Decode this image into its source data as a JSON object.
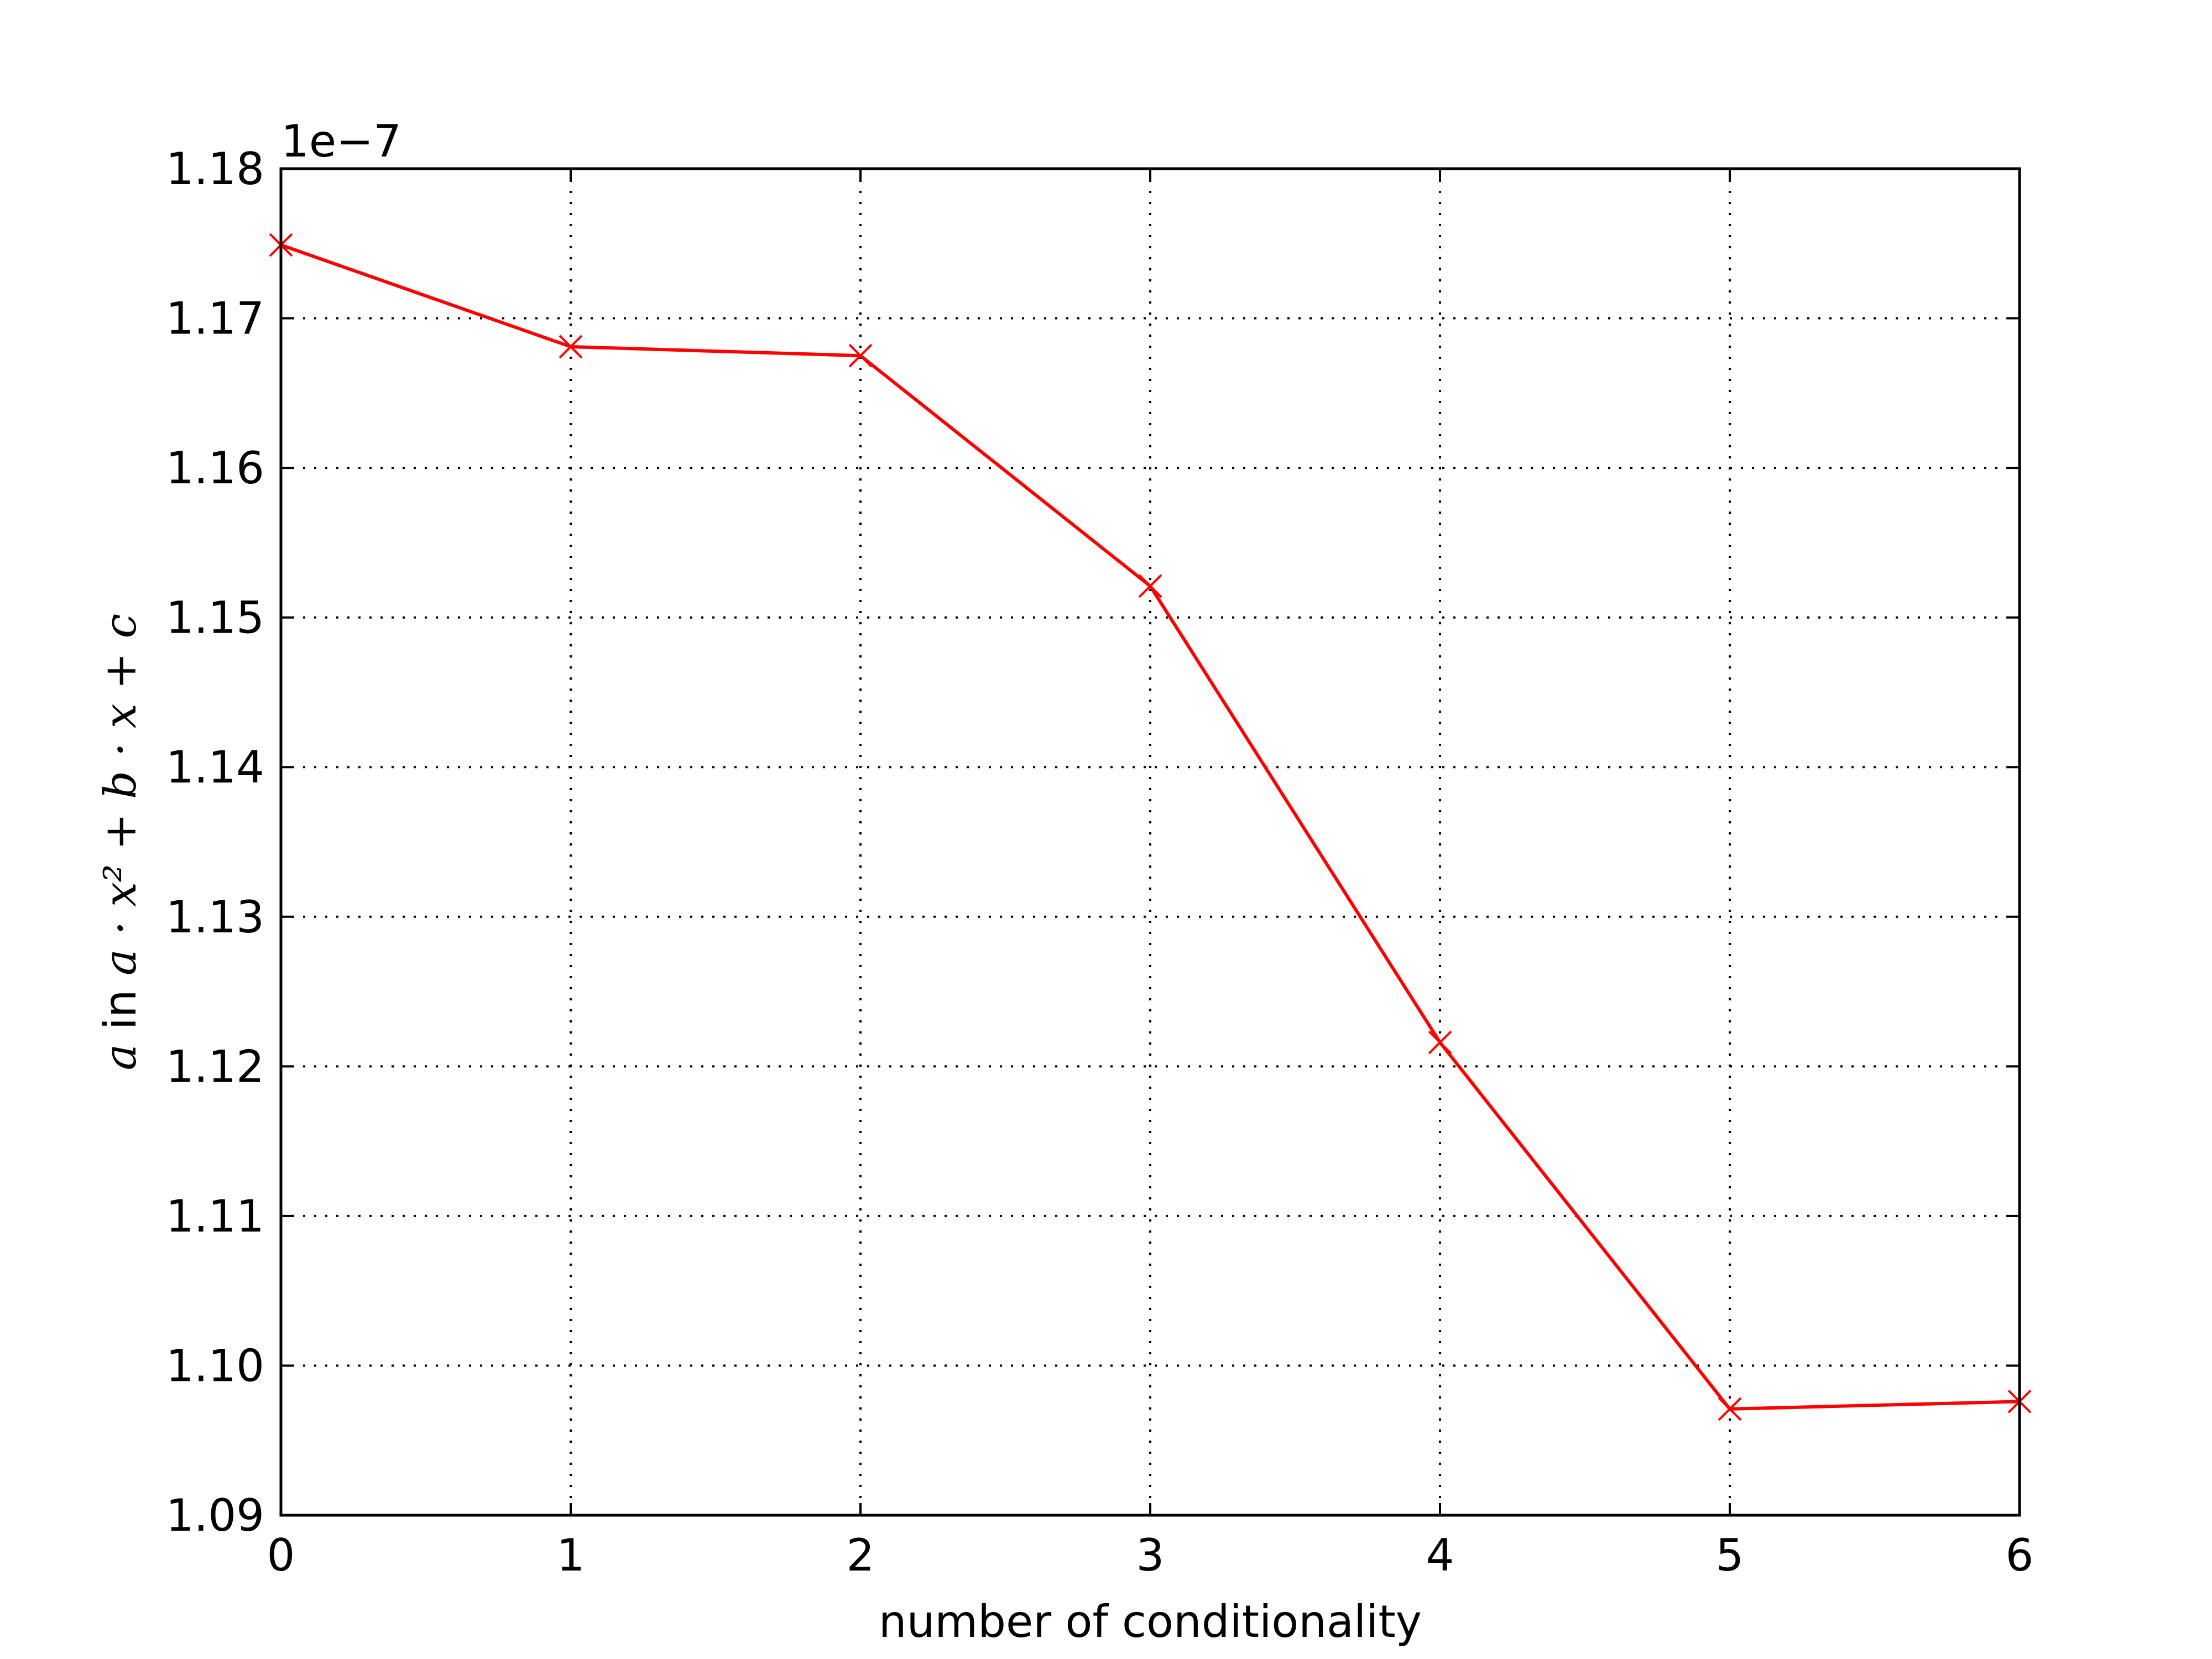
{
  "chart_data": {
    "type": "line",
    "title": "",
    "xlabel": "number of conditionality",
    "ylabel": {
      "math_a": "a",
      "word_in": " in ",
      "expression": "a · x² + b · x + c"
    },
    "y_offset_label": "1e−7",
    "xlim": [
      0,
      6
    ],
    "ylim": [
      1.09,
      1.18
    ],
    "x_ticks": [
      "0",
      "1",
      "2",
      "3",
      "4",
      "5",
      "6"
    ],
    "y_ticks": [
      "1.09",
      "1.10",
      "1.11",
      "1.12",
      "1.13",
      "1.14",
      "1.15",
      "1.16",
      "1.17",
      "1.18"
    ],
    "grid": true,
    "legend": false,
    "series": [
      {
        "color": "#ff0000",
        "marker": "x",
        "x": [
          0,
          1,
          2,
          3,
          4,
          5,
          6
        ],
        "y": [
          1.1749,
          1.1681,
          1.1675,
          1.1521,
          1.1216,
          1.0971,
          1.0976
        ]
      }
    ]
  }
}
